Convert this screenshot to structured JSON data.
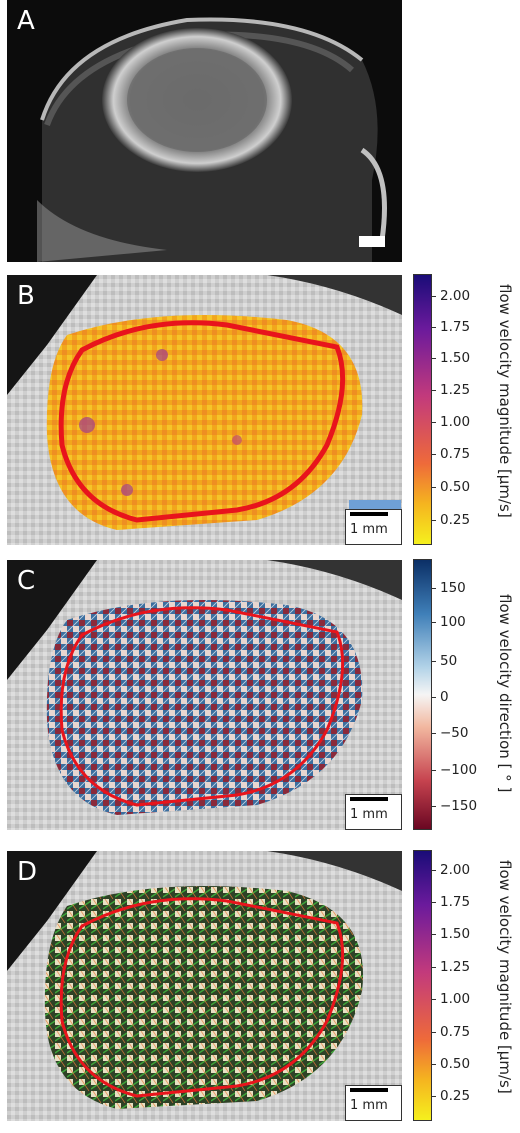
{
  "figure": {
    "panels": [
      {
        "id": "A",
        "label": "A"
      },
      {
        "id": "B",
        "label": "B",
        "scalebar": "1 mm",
        "colorbar": {
          "label": "flow velocity magnitude [μm/s]",
          "ticks": [
            "2.00",
            "1.75",
            "1.50",
            "1.25",
            "1.00",
            "0.75",
            "0.50",
            "0.25"
          ]
        }
      },
      {
        "id": "C",
        "label": "C",
        "scalebar": "1 mm",
        "colorbar": {
          "label": "flow velocity direction [ ° ]",
          "ticks": [
            "150",
            "100",
            "50",
            "0",
            "−50",
            "−100",
            "−150"
          ]
        }
      },
      {
        "id": "D",
        "label": "D",
        "scalebar": "1 mm",
        "colorbar": {
          "label": "flow velocity magnitude [μm/s]",
          "ticks": [
            "2.00",
            "1.75",
            "1.50",
            "1.25",
            "1.00",
            "0.75",
            "0.50",
            "0.25"
          ]
        }
      }
    ],
    "colors": {
      "tumor_outline": "#e8141c",
      "plasma_top": "#1a0c78",
      "plasma_mid": "#c23a7c",
      "plasma_bottom": "#f5f01e",
      "rdbu_top": "#0b2f66",
      "rdbu_bottom": "#6a0722",
      "arrow_green": "#3ea63a"
    }
  }
}
